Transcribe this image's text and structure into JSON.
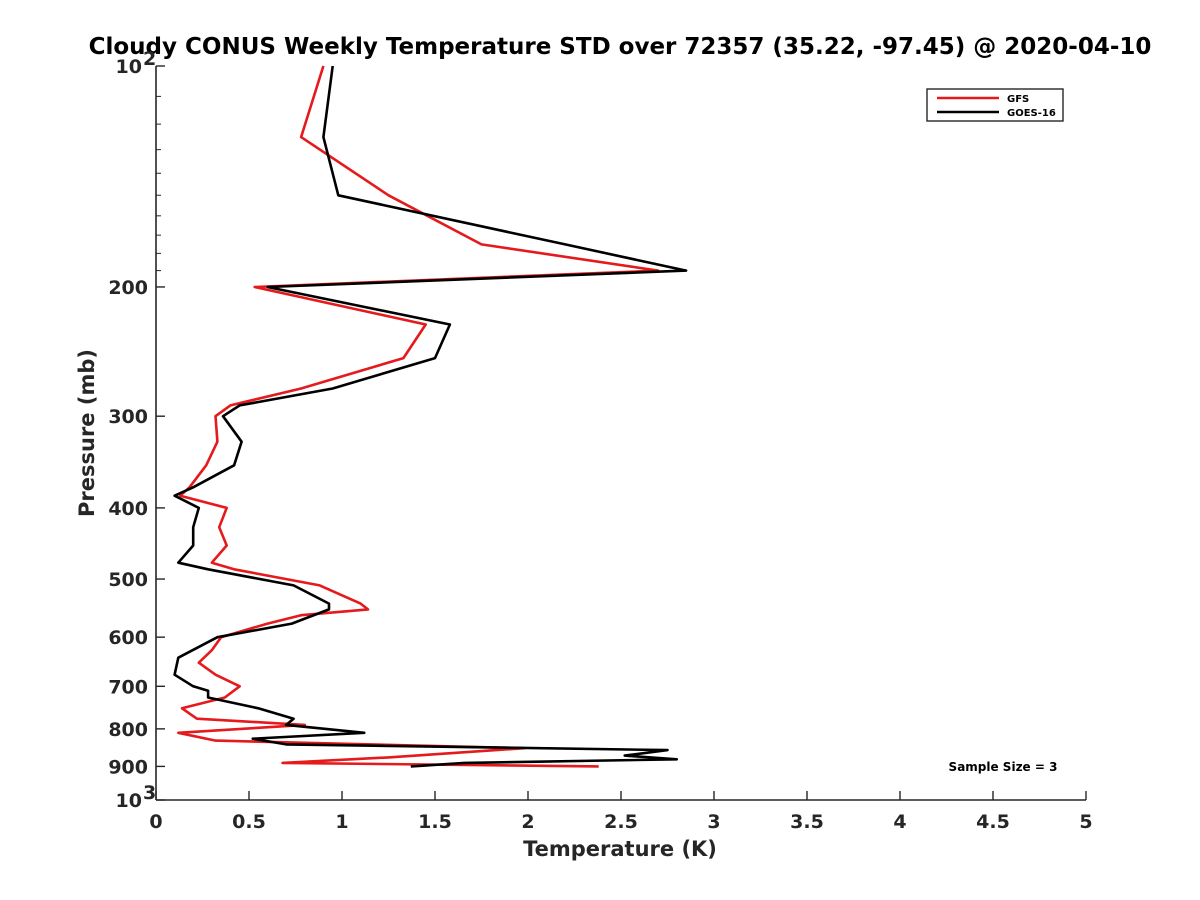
{
  "chart_data": {
    "type": "line",
    "title": "Cloudy CONUS Weekly Temperature STD over 72357 (35.22, -97.45) @ 2020-04-10",
    "xlabel": "Temperature (K)",
    "ylabel": "Pressure (mb)",
    "xlim": [
      0,
      5
    ],
    "ylim": [
      100,
      1000
    ],
    "y_scale": "log",
    "y_reversed": true,
    "grid": false,
    "legend_location": "top-right",
    "x_ticks": [
      "0",
      "0.5",
      "1",
      "1.5",
      "2",
      "2.5",
      "3",
      "3.5",
      "4",
      "4.5",
      "5"
    ],
    "y_ticks": [
      {
        "value": 100,
        "base": "10",
        "exp": "2"
      },
      {
        "value": 200,
        "label": "200"
      },
      {
        "value": 300,
        "label": "300"
      },
      {
        "value": 400,
        "label": "400"
      },
      {
        "value": 500,
        "label": "500"
      },
      {
        "value": 600,
        "label": "600"
      },
      {
        "value": 700,
        "label": "700"
      },
      {
        "value": 800,
        "label": "800"
      },
      {
        "value": 900,
        "label": "900"
      },
      {
        "value": 1000,
        "base": "10",
        "exp": "3"
      }
    ],
    "annotation": "Sample Size = 3",
    "series": [
      {
        "name": "GFS",
        "color": "#e41a1c",
        "points": [
          [
            0.9,
            100
          ],
          [
            0.78,
            125
          ],
          [
            1.25,
            150
          ],
          [
            1.75,
            175
          ],
          [
            2.7,
            190
          ],
          [
            0.53,
            200
          ],
          [
            1.45,
            225
          ],
          [
            1.33,
            250
          ],
          [
            0.78,
            275
          ],
          [
            0.4,
            290
          ],
          [
            0.32,
            300
          ],
          [
            0.33,
            325
          ],
          [
            0.27,
            350
          ],
          [
            0.18,
            375
          ],
          [
            0.13,
            385
          ],
          [
            0.38,
            400
          ],
          [
            0.34,
            425
          ],
          [
            0.38,
            450
          ],
          [
            0.3,
            475
          ],
          [
            0.42,
            485
          ],
          [
            0.88,
            510
          ],
          [
            1.1,
            540
          ],
          [
            1.14,
            550
          ],
          [
            0.78,
            560
          ],
          [
            0.6,
            575
          ],
          [
            0.35,
            600
          ],
          [
            0.3,
            625
          ],
          [
            0.23,
            650
          ],
          [
            0.32,
            675
          ],
          [
            0.45,
            700
          ],
          [
            0.37,
            725
          ],
          [
            0.14,
            750
          ],
          [
            0.22,
            775
          ],
          [
            0.8,
            790
          ],
          [
            0.12,
            810
          ],
          [
            0.32,
            830
          ],
          [
            1.98,
            850
          ],
          [
            1.25,
            875
          ],
          [
            0.68,
            890
          ],
          [
            2.38,
            900
          ]
        ]
      },
      {
        "name": "GOES-16",
        "color": "#000000",
        "points": [
          [
            0.95,
            100
          ],
          [
            0.9,
            125
          ],
          [
            0.98,
            150
          ],
          [
            2.2,
            175
          ],
          [
            2.85,
            190
          ],
          [
            0.6,
            200
          ],
          [
            1.58,
            225
          ],
          [
            1.5,
            250
          ],
          [
            0.95,
            275
          ],
          [
            0.45,
            290
          ],
          [
            0.36,
            300
          ],
          [
            0.46,
            325
          ],
          [
            0.42,
            350
          ],
          [
            0.2,
            375
          ],
          [
            0.1,
            385
          ],
          [
            0.23,
            400
          ],
          [
            0.2,
            425
          ],
          [
            0.2,
            450
          ],
          [
            0.12,
            475
          ],
          [
            0.28,
            485
          ],
          [
            0.74,
            510
          ],
          [
            0.93,
            540
          ],
          [
            0.93,
            550
          ],
          [
            0.73,
            575
          ],
          [
            0.33,
            600
          ],
          [
            0.12,
            640
          ],
          [
            0.1,
            675
          ],
          [
            0.2,
            700
          ],
          [
            0.28,
            710
          ],
          [
            0.28,
            725
          ],
          [
            0.55,
            750
          ],
          [
            0.74,
            775
          ],
          [
            0.7,
            790
          ],
          [
            1.12,
            810
          ],
          [
            0.52,
            825
          ],
          [
            0.7,
            840
          ],
          [
            2.75,
            855
          ],
          [
            2.52,
            870
          ],
          [
            2.8,
            880
          ],
          [
            1.66,
            890
          ],
          [
            1.37,
            900
          ]
        ]
      }
    ]
  }
}
